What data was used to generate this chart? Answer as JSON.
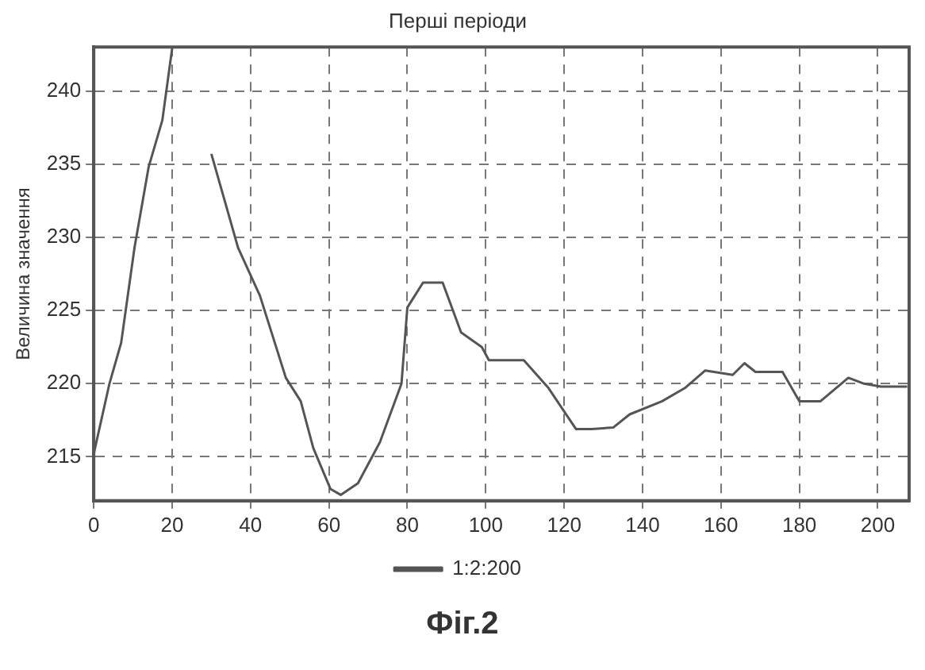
{
  "chart_data": {
    "type": "line",
    "title": "Перші періоди",
    "ylabel": "Величина значення",
    "annotations": [
      "Фіг.2"
    ],
    "series": [
      {
        "name": "1:2:200",
        "color": "#555555",
        "x": [
          0,
          4,
          7,
          10.4,
          14,
          17.5,
          20,
          22,
          23.6,
          30,
          36.8,
          42.4,
          49,
          52.8,
          56,
          60.4,
          63,
          67.4,
          73,
          78.5,
          80,
          84,
          89,
          93.7,
          99,
          100.8,
          109.7,
          116,
          123,
          127,
          132.5,
          136.7,
          145,
          150.8,
          156,
          163,
          166,
          168.8,
          175.7,
          180,
          185.4,
          192.5,
          196.5,
          200.8,
          207.5
        ],
        "values": [
          215.2,
          220,
          222.8,
          229.3,
          234.8,
          238,
          242.9,
          null,
          null,
          235.7,
          229.3,
          226,
          220.4,
          218.8,
          215.6,
          212.8,
          212.4,
          213.2,
          216,
          220,
          225.2,
          226.9,
          226.9,
          223.5,
          222.5,
          221.6,
          221.6,
          219.7,
          216.9,
          216.9,
          217,
          217.9,
          218.8,
          219.7,
          220.9,
          220.6,
          221.4,
          220.8,
          220.8,
          218.8,
          218.8,
          220.4,
          220,
          219.8,
          219.8
        ]
      }
    ],
    "xlim": [
      0,
      208
    ],
    "xticks": [
      0,
      20,
      40,
      60,
      80,
      100,
      120,
      140,
      160,
      180,
      200
    ],
    "ylim": [
      212,
      243
    ],
    "yticks": [
      215,
      220,
      225,
      230,
      235,
      240
    ],
    "grid": true,
    "legend": "bottom",
    "marker": "none",
    "line_style": "solid"
  }
}
